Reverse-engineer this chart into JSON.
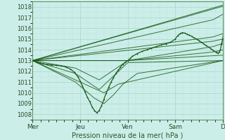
{
  "xlabel": "Pression niveau de la mer( hPa )",
  "bg_color": "#cceee8",
  "grid_color_major": "#aad4cc",
  "grid_color_minor": "#bde0da",
  "line_color": "#1a5c1a",
  "ylim": [
    1007.5,
    1018.5
  ],
  "yticks": [
    1008,
    1009,
    1010,
    1011,
    1012,
    1013,
    1014,
    1015,
    1016,
    1017,
    1018
  ],
  "xtick_labels": [
    "Mer",
    "Jeu",
    "Ven",
    "Sam",
    "D"
  ],
  "xtick_pos": [
    0,
    1,
    2,
    3,
    4
  ],
  "xlim": [
    0,
    4.0
  ],
  "ensemble_lines": [
    [
      [
        0,
        1013.0
      ],
      [
        4.0,
        1018.15
      ]
    ],
    [
      [
        0,
        1013.0
      ],
      [
        4.0,
        1018.05
      ]
    ],
    [
      [
        0,
        1013.0
      ],
      [
        3.8,
        1016.8
      ],
      [
        4.0,
        1017.3
      ]
    ],
    [
      [
        0,
        1013.0
      ],
      [
        3.8,
        1015.2
      ],
      [
        4.0,
        1015.5
      ]
    ],
    [
      [
        0,
        1013.0
      ],
      [
        3.8,
        1014.8
      ],
      [
        4.0,
        1015.0
      ]
    ],
    [
      [
        0,
        1013.0
      ],
      [
        2.0,
        1013.0
      ],
      [
        3.8,
        1014.3
      ],
      [
        4.0,
        1014.6
      ]
    ],
    [
      [
        0,
        1013.0
      ],
      [
        2.0,
        1013.0
      ],
      [
        3.8,
        1013.8
      ],
      [
        4.0,
        1014.0
      ]
    ],
    [
      [
        0,
        1013.0
      ],
      [
        0.9,
        1012.3
      ],
      [
        1.4,
        1011.2
      ],
      [
        2.0,
        1013.0
      ],
      [
        4.0,
        1013.5
      ]
    ],
    [
      [
        0,
        1013.0
      ],
      [
        0.9,
        1011.8
      ],
      [
        1.4,
        1010.3
      ],
      [
        2.0,
        1012.8
      ],
      [
        4.0,
        1013.0
      ]
    ],
    [
      [
        0,
        1013.0
      ],
      [
        0.9,
        1011.2
      ],
      [
        1.5,
        1010.0
      ],
      [
        1.8,
        1010.8
      ],
      [
        4.0,
        1013.0
      ]
    ],
    [
      [
        0,
        1013.0
      ],
      [
        0.9,
        1011.0
      ],
      [
        1.3,
        1009.5
      ],
      [
        1.5,
        1009.0
      ],
      [
        1.7,
        1009.8
      ],
      [
        1.9,
        1010.8
      ],
      [
        2.2,
        1011.8
      ],
      [
        4.0,
        1013.0
      ]
    ]
  ],
  "main_line": [
    [
      0.0,
      1013.0
    ],
    [
      0.08,
      1012.85
    ],
    [
      0.15,
      1012.75
    ],
    [
      0.22,
      1012.7
    ],
    [
      0.3,
      1012.65
    ],
    [
      0.4,
      1012.6
    ],
    [
      0.5,
      1012.55
    ],
    [
      0.6,
      1012.5
    ],
    [
      0.7,
      1012.4
    ],
    [
      0.8,
      1012.2
    ],
    [
      0.88,
      1011.9
    ],
    [
      0.95,
      1011.5
    ],
    [
      1.0,
      1011.1
    ],
    [
      1.05,
      1010.6
    ],
    [
      1.1,
      1010.1
    ],
    [
      1.15,
      1009.6
    ],
    [
      1.2,
      1009.2
    ],
    [
      1.25,
      1008.7
    ],
    [
      1.3,
      1008.35
    ],
    [
      1.35,
      1008.15
    ],
    [
      1.4,
      1008.35
    ],
    [
      1.45,
      1008.8
    ],
    [
      1.5,
      1009.4
    ],
    [
      1.55,
      1010.0
    ],
    [
      1.6,
      1010.5
    ],
    [
      1.65,
      1011.0
    ],
    [
      1.7,
      1011.4
    ],
    [
      1.75,
      1011.8
    ],
    [
      1.8,
      1012.1
    ],
    [
      1.85,
      1012.4
    ],
    [
      1.9,
      1012.65
    ],
    [
      1.95,
      1012.85
    ],
    [
      2.0,
      1013.0
    ],
    [
      2.05,
      1013.2
    ],
    [
      2.1,
      1013.4
    ],
    [
      2.2,
      1013.65
    ],
    [
      2.3,
      1013.85
    ],
    [
      2.4,
      1014.0
    ],
    [
      2.5,
      1014.15
    ],
    [
      2.6,
      1014.3
    ],
    [
      2.7,
      1014.45
    ],
    [
      2.8,
      1014.55
    ],
    [
      2.9,
      1014.7
    ],
    [
      3.0,
      1015.0
    ],
    [
      3.05,
      1015.3
    ],
    [
      3.1,
      1015.5
    ],
    [
      3.15,
      1015.6
    ],
    [
      3.2,
      1015.55
    ],
    [
      3.25,
      1015.45
    ],
    [
      3.3,
      1015.35
    ],
    [
      3.35,
      1015.25
    ],
    [
      3.4,
      1015.1
    ],
    [
      3.45,
      1015.0
    ],
    [
      3.5,
      1014.85
    ],
    [
      3.55,
      1014.7
    ],
    [
      3.6,
      1014.55
    ],
    [
      3.65,
      1014.4
    ],
    [
      3.7,
      1014.25
    ],
    [
      3.75,
      1014.1
    ],
    [
      3.8,
      1013.95
    ],
    [
      3.85,
      1013.8
    ],
    [
      3.87,
      1013.75
    ],
    [
      3.9,
      1013.7
    ],
    [
      3.93,
      1013.8
    ],
    [
      3.95,
      1014.0
    ],
    [
      3.97,
      1014.5
    ],
    [
      4.0,
      1015.0
    ],
    [
      4.02,
      1015.8
    ],
    [
      4.05,
      1016.5
    ],
    [
      4.07,
      1017.0
    ],
    [
      4.08,
      1017.5
    ],
    [
      4.09,
      1017.9
    ],
    [
      4.1,
      1018.1
    ]
  ]
}
